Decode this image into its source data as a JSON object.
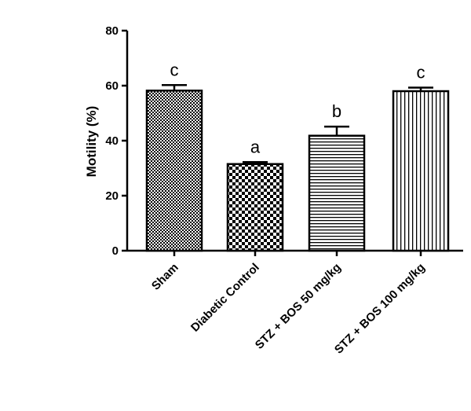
{
  "chart_data": {
    "type": "bar",
    "title": "",
    "xlabel": "",
    "ylabel": "Motility (%)",
    "ylim": [
      0,
      80
    ],
    "yticks": [
      0,
      20,
      40,
      60,
      80
    ],
    "grid": false,
    "categories": [
      "Sham",
      "Diabetic Control",
      "STZ + BOS 50 mg/kg",
      "STZ + BOS 100 mg/kg"
    ],
    "values": [
      58.2,
      31.5,
      41.8,
      58.0
    ],
    "errors": [
      2.0,
      0.7,
      3.3,
      1.3
    ],
    "significance": [
      "c",
      "a",
      "b",
      "c"
    ],
    "patterns": [
      "fine-checker",
      "checker",
      "horizontal-lines",
      "vertical-lines"
    ]
  }
}
